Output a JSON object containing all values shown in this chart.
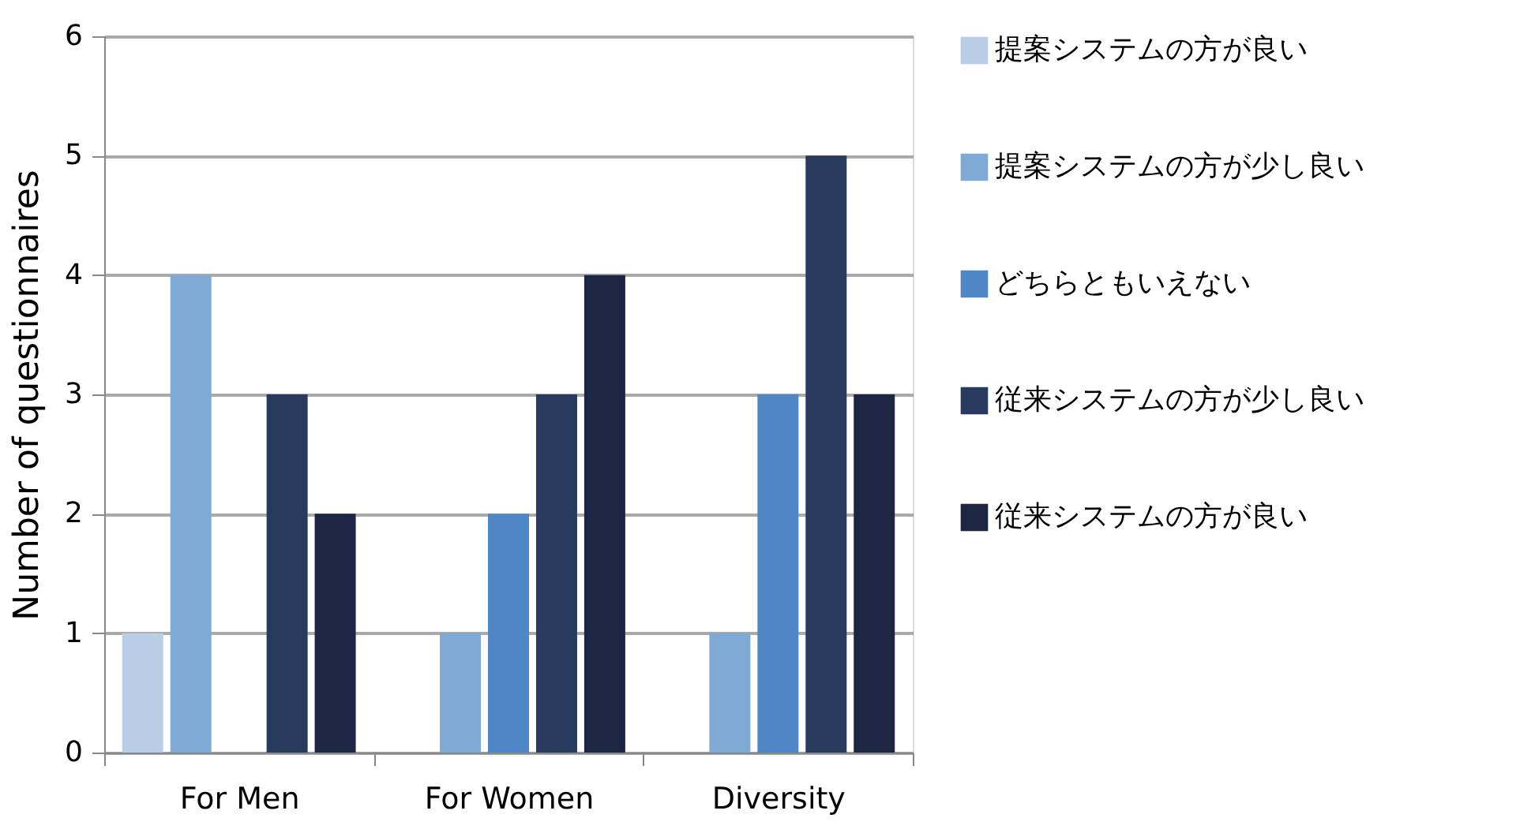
{
  "chart_data": {
    "type": "bar",
    "ylabel": "Number of questionnaires",
    "categories": [
      "For Men",
      "For Women",
      "Diversity"
    ],
    "series": [
      {
        "name": "提案システムの方が良い",
        "color": "#b8cde6",
        "values": [
          1,
          0,
          0
        ]
      },
      {
        "name": "提案システムの方が少し良い",
        "color": "#80aad6",
        "values": [
          4,
          1,
          1
        ]
      },
      {
        "name": "どちらともいえない",
        "color": "#4f86c6",
        "values": [
          0,
          2,
          3
        ]
      },
      {
        "name": "従来システムの方が少し良い",
        "color": "#283b5e",
        "values": [
          3,
          3,
          5
        ]
      },
      {
        "name": "従来システムの方が良い",
        "color": "#1c2541",
        "values": [
          2,
          4,
          3
        ]
      }
    ],
    "ylim": [
      0,
      6
    ],
    "yticks": [
      0,
      1,
      2,
      3,
      4,
      5,
      6
    ],
    "grid": "y",
    "legend": "right"
  }
}
